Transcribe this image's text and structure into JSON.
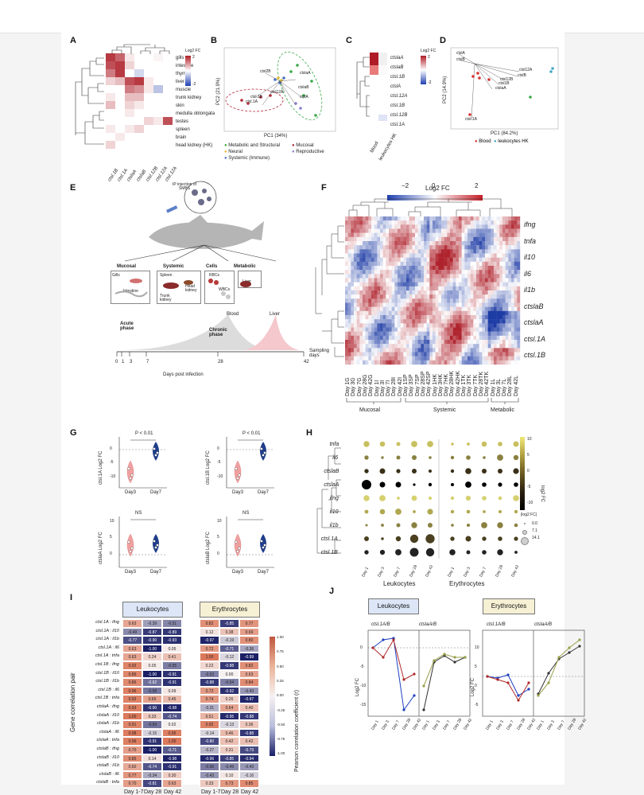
{
  "panels": {
    "A": "A",
    "B": "B",
    "C": "C",
    "D": "D",
    "E": "E",
    "F": "F",
    "G": "G",
    "H": "H",
    "I": "I",
    "J": "J"
  },
  "panelA": {
    "tissues": [
      "gills",
      "intestine",
      "thymus",
      "liver",
      "muscle",
      "trunk kidney",
      "skin",
      "medulla oblongata",
      "testes",
      "spleen",
      "brain",
      "head kidney (HK)"
    ],
    "genes": [
      "ctsl.1B",
      "ctsl.1A",
      "ctslaA",
      "ctslaB",
      "ctsl.12B",
      "ctsl.12A",
      "ctsl.12A"
    ],
    "legend_title": "Log2 FC",
    "legend_max": "2",
    "legend_min": "-2"
  },
  "panelB": {
    "xlabel": "PC1 (34%)",
    "ylabel": "PC2 (21.9%)",
    "labels": [
      "ctsl2B",
      "ctslaA",
      "ctsl12A",
      "ctslaB",
      "ctsl.1B",
      "ctsl.1A",
      "ctslA"
    ],
    "legend": [
      {
        "name": "Metabolic and Structural",
        "color": "#3aa84a"
      },
      {
        "name": "Mucosal",
        "color": "#b22a3a"
      },
      {
        "name": "Neural",
        "color": "#e0b83a"
      },
      {
        "name": "Reproductive",
        "color": "#8a7fd0"
      },
      {
        "name": "Systemic (Immune)",
        "color": "#4a72c8"
      }
    ]
  },
  "panelC": {
    "genes": [
      "ctslaA",
      "ctslaB",
      "ctsl.1B",
      "ctslA",
      "ctsl.12A",
      "ctsl.1B",
      "ctsl.12B",
      "ctsl.1A"
    ],
    "cols": [
      "blood",
      "leukocytes HK"
    ],
    "legend_title": "Log2 FC",
    "legend_max": "2",
    "legend_min": "-2"
  },
  "panelD": {
    "xlabel": "PC1 (84.2%)",
    "ylabel": "PC2 (14.9%)",
    "labels": [
      "ctslA",
      "ctslB",
      "ctsl12A",
      "ctslB",
      "ctsl12B",
      "ctsl1B",
      "ctslaA",
      "ctsl.1A"
    ],
    "legend": [
      "Blood",
      "leukocytes HK"
    ]
  },
  "panelE": {
    "ip_text": "IP injection of SMBS",
    "groups": [
      "Mucosal",
      "Systemic",
      "Cells",
      "Metabolic"
    ],
    "mucosal_items": [
      "Gills",
      "Intestine"
    ],
    "systemic_items": [
      "Spleen",
      "Head kidney",
      "Trunk kidney"
    ],
    "cells_items": [
      "RBCs",
      "WBCs"
    ],
    "metabolic_items": [
      "Liver"
    ],
    "acute": "Acute phase",
    "chronic": "Chronic phase",
    "blood": "Blood",
    "liver": "Liver",
    "sampling": "Sampling days",
    "days": [
      "0",
      "1",
      "3",
      "7",
      "28",
      "42"
    ],
    "xlabel": "Days post infection"
  },
  "panelF": {
    "legend_title": "Log2 FC",
    "legend_ticks": [
      "−2",
      "0",
      "2"
    ],
    "genes": [
      "ifng",
      "tnfa",
      "il10",
      "il6",
      "il1b",
      "ctslaB",
      "ctslaA",
      "ctsl.1A",
      "ctsl.1B"
    ],
    "columns": [
      "Day 1G",
      "Day 3G",
      "Day 7G",
      "Day 28G",
      "Day 42G",
      "Day 1I",
      "Day 3I",
      "Day 7I",
      "Day 28I",
      "Day 42I",
      "Day 1SP",
      "Day 3SP",
      "Day 7SP",
      "Day 28SP",
      "Day 42SP",
      "Day 1HK",
      "Day 3HK",
      "Day 7HK",
      "Day 28HK",
      "Day 42HK",
      "Day 1TK",
      "Day 3TK",
      "Day 7TK",
      "Day 28TK",
      "Day 42TK",
      "Day 1L",
      "Day 3L",
      "Day 7L",
      "Day 28L",
      "Day 42L"
    ],
    "groups": [
      "Mucosal",
      "Systemic",
      "Metabolic"
    ]
  },
  "panelG": {
    "plots": [
      {
        "ylabel": "ctsl.1A Log2 FC",
        "stat": "P < 0.01",
        "ticks": [
          "0",
          "-5",
          "-10"
        ]
      },
      {
        "ylabel": "ctsl.1B Log2 FC",
        "stat": "P < 0.01",
        "ticks": [
          "0",
          "-5",
          "-10"
        ]
      },
      {
        "ylabel": "ctslaA Log2 FC",
        "stat": "NS",
        "ticks": [
          "10",
          "5",
          "0"
        ]
      },
      {
        "ylabel": "ctslaB Log2 FC",
        "stat": "NS",
        "ticks": [
          "10",
          "5",
          "0"
        ]
      }
    ],
    "xcats": [
      "Day3",
      "Day7"
    ]
  },
  "panelH": {
    "genes": [
      "tnfa",
      "il6",
      "ctslaB",
      "ctslaA",
      "ifng",
      "il10",
      "il1b",
      "ctsl.1A",
      "ctsl.1B"
    ],
    "days": [
      "Day 1",
      "Day 3",
      "Day 7",
      "Day 28",
      "Day 42"
    ],
    "groups": [
      "Leukocytes",
      "Erythrocytes"
    ],
    "colorbar_ticks": [
      "10",
      "5",
      "0",
      "-5",
      "-10"
    ],
    "colorbar_label": "log2 FC",
    "size_title": "|log2 FC|",
    "size_items": [
      "0.0",
      "7.1",
      "14.1"
    ]
  },
  "panelI": {
    "headers": [
      "Leukocytes",
      "Erythrocytes"
    ],
    "ylabel": "Gene correlation pair",
    "cbar_label": "Pearson correlation coefficient (r)",
    "cbar_ticks": [
      "1.00",
      "0.75",
      "0.50",
      "0.25",
      "0.00",
      "-0.25",
      "-0.50",
      "-0.75",
      "-1.00"
    ],
    "xcols": [
      "Day 1-7",
      "Day 28",
      "Day 42",
      "Day 1-7",
      "Day 28",
      "Day 42"
    ],
    "pairs": [
      "ctsl.1A : ifng",
      "ctsl.1A : il10",
      "ctsl.1A : il1b",
      "ctsl.1A : il6",
      "ctsl.1A : tnfa",
      "ctsl.1B : ifng",
      "ctsl.1B : il10",
      "ctsl.1B : il1b",
      "ctsl.1B : il6",
      "ctsl.1B : tnfa",
      "ctslaA : ifng",
      "ctslaA : il10",
      "ctslaA : il1b",
      "ctslaA : il6",
      "ctslaA : tnfa",
      "ctslaB : ifng",
      "ctslaB : il10",
      "ctslaB : il1b",
      "ctslaB : il6",
      "ctslaB : tnfa"
    ],
    "leuk": [
      [
        "0.63",
        "-0.39",
        "-0.51"
      ],
      [
        "-0.49",
        "-0.87",
        "-0.89"
      ],
      [
        "-0.77",
        "-0.90",
        "-0.93"
      ],
      [
        "0.63",
        "-1.00",
        "0.05"
      ],
      [
        "0.63",
        "0.24",
        "0.41"
      ],
      [
        "0.92",
        "0.05",
        "-0.55"
      ],
      [
        "0.89",
        "-1.00",
        "-0.91"
      ],
      [
        "0.86",
        "-0.62",
        "-0.91"
      ],
      [
        "0.96",
        "-0.58",
        "0.09"
      ],
      [
        "0.92",
        "0.65",
        "0.45"
      ],
      [
        "0.93",
        "-0.90",
        "-0.98"
      ],
      [
        "1.00",
        "0.33",
        "-0.74"
      ],
      [
        "0.91",
        "-0.59",
        "0.02"
      ],
      [
        "0.98",
        "-0.15",
        "0.95"
      ],
      [
        "0.96",
        "-0.91",
        "1.00"
      ],
      [
        "0.70",
        "-1.00",
        "-0.71"
      ],
      [
        "0.85",
        "0.14",
        "-0.98"
      ],
      [
        "0.60",
        "-0.74",
        "-0.91"
      ],
      [
        "0.77",
        "-0.34",
        "0.30"
      ],
      [
        "0.70",
        "-0.81",
        "0.63"
      ]
    ],
    "ery": [
      [
        "0.82",
        "-0.85",
        "0.77"
      ],
      [
        "0.12",
        "0.38",
        "0.69"
      ],
      [
        "-0.97",
        "-0.19",
        "0.80"
      ],
      [
        "0.72",
        "-0.71",
        "-0.36"
      ],
      [
        "1.00",
        "-0.12",
        "-0.99"
      ],
      [
        "0.22",
        "-0.88",
        "0.82"
      ],
      [
        "-0.53",
        "0.00",
        "0.63"
      ],
      [
        "-0.88",
        "-0.54",
        "0.84"
      ],
      [
        "0.72",
        "-0.92",
        "-0.43"
      ],
      [
        "0.74",
        "0.26",
        "-0.97"
      ],
      [
        "-0.31",
        "0.64",
        "0.40"
      ],
      [
        "0.51",
        "-0.95",
        "-0.88"
      ],
      [
        "0.92",
        "-0.13",
        "0.36"
      ],
      [
        "-0.14",
        "0.46",
        "-0.88"
      ],
      [
        "-0.80",
        "0.42",
        "0.42"
      ],
      [
        "-0.27",
        "0.31",
        "-0.79"
      ],
      [
        "-0.96",
        "-0.85",
        "-0.94"
      ],
      [
        "-0.56",
        "-0.49",
        "-0.43"
      ],
      [
        "-0.43",
        "0.10",
        "-0.16"
      ],
      [
        "0.33",
        "0.73",
        "0.85"
      ]
    ]
  },
  "panelJ": {
    "headers": [
      "Leukocytes",
      "Erythrocytes"
    ],
    "sub": [
      "ctsl.1A/B",
      "ctslaA/B",
      "ctsl.1A/B",
      "ctslaA/B"
    ],
    "ylabel": "Log2 FC",
    "left_ticks": [
      "0",
      "-5",
      "-10",
      "-15"
    ],
    "right_ticks": [
      "10",
      "5",
      "0",
      "-5"
    ],
    "xticks": [
      "Day 1",
      "Day 3",
      "Day 7",
      "Day 28",
      "Day 42"
    ]
  }
}
